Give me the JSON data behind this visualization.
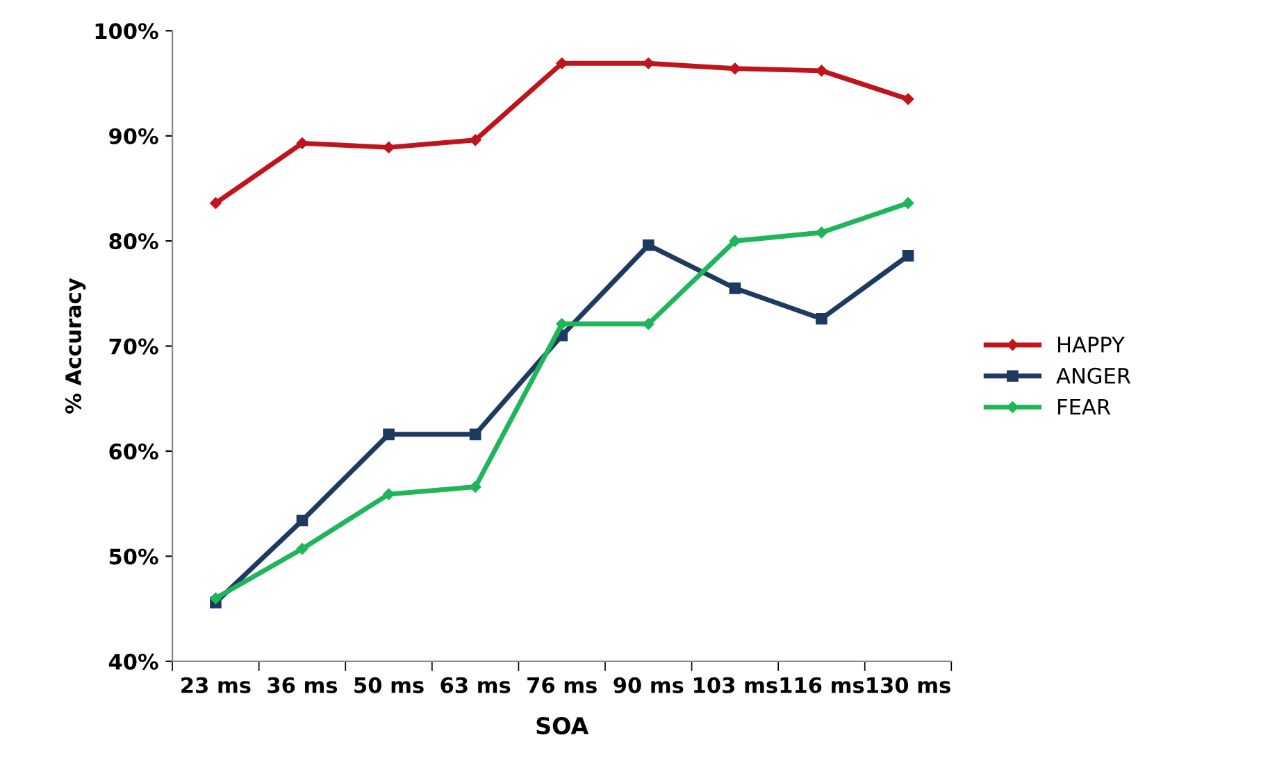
{
  "chart_data": {
    "type": "line",
    "xlabel": "SOA",
    "ylabel": "% Accuracy",
    "categories": [
      "23 ms",
      "36 ms",
      "50 ms",
      "63 ms",
      "76 ms",
      "90 ms",
      "103 ms",
      "116 ms",
      "130 ms"
    ],
    "series": [
      {
        "name": "HAPPY",
        "color": "#c0141c",
        "marker": "diamond",
        "values": [
          83.6,
          89.3,
          88.9,
          89.6,
          96.9,
          96.9,
          96.4,
          96.2,
          93.5
        ]
      },
      {
        "name": "ANGER",
        "color": "#1f3a60",
        "marker": "square",
        "values": [
          45.6,
          53.4,
          61.6,
          61.6,
          71.0,
          79.6,
          75.5,
          72.6,
          78.6
        ]
      },
      {
        "name": "FEAR",
        "color": "#1fb55a",
        "marker": "diamond",
        "values": [
          46.0,
          50.7,
          55.9,
          56.6,
          72.1,
          72.1,
          80.0,
          80.8,
          83.6
        ]
      }
    ],
    "ylim": [
      40,
      100
    ],
    "yticks": [
      {
        "value": 40,
        "label": "40%"
      },
      {
        "value": 50,
        "label": "50%"
      },
      {
        "value": 60,
        "label": "60%"
      },
      {
        "value": 70,
        "label": "70%"
      },
      {
        "value": 80,
        "label": "80%"
      },
      {
        "value": 90,
        "label": "90%"
      },
      {
        "value": 100,
        "label": "100%"
      }
    ],
    "grid": false,
    "legend": "right",
    "line_style": "solid"
  }
}
